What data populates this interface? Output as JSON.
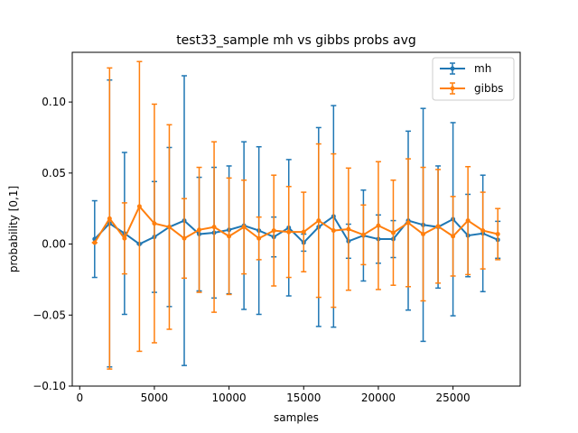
{
  "chart_data": {
    "type": "line",
    "title": "test33_sample mh vs gibbs probs avg",
    "xlabel": "samples",
    "ylabel": "probability [0,1]",
    "xlim": [
      -500,
      29500
    ],
    "ylim": [
      -0.1,
      0.135
    ],
    "xticks": [
      0,
      5000,
      10000,
      15000,
      20000,
      25000
    ],
    "yticks": [
      -0.1,
      -0.05,
      0.0,
      0.05,
      0.1
    ],
    "ytick_labels": [
      "−0.10",
      "−0.05",
      "0.00",
      "0.05",
      "0.10"
    ],
    "legend": "top-right",
    "grid": false,
    "series": [
      {
        "name": "mh",
        "color": "#1f77b4",
        "x": [
          1000,
          2000,
          3000,
          4000,
          5000,
          6000,
          7000,
          8000,
          9000,
          10000,
          11000,
          12000,
          13000,
          14000,
          15000,
          16000,
          17000,
          18000,
          19000,
          20000,
          21000,
          22000,
          23000,
          24000,
          25000,
          26000,
          27000,
          28000
        ],
        "y": [
          0.0035,
          0.0145,
          0.0075,
          0.0,
          0.005,
          0.012,
          0.0165,
          0.007,
          0.008,
          0.01,
          0.013,
          0.0095,
          0.005,
          0.0115,
          0.001,
          0.012,
          0.0195,
          0.002,
          0.006,
          0.0035,
          0.0035,
          0.0165,
          0.0135,
          0.012,
          0.0175,
          0.006,
          0.0075,
          0.003
        ],
        "err": [
          0.027,
          0.101,
          0.057,
          0.0,
          0.039,
          0.056,
          0.102,
          0.04,
          0.046,
          0.045,
          0.059,
          0.059,
          0.014,
          0.048,
          0.006,
          0.07,
          0.078,
          0.012,
          0.032,
          0.017,
          0.013,
          0.063,
          0.082,
          0.043,
          0.068,
          0.029,
          0.041,
          0.013
        ]
      },
      {
        "name": "gibbs",
        "color": "#ff7f0e",
        "x": [
          1000,
          2000,
          3000,
          4000,
          5000,
          6000,
          7000,
          8000,
          9000,
          10000,
          11000,
          12000,
          13000,
          14000,
          15000,
          16000,
          17000,
          18000,
          19000,
          20000,
          21000,
          22000,
          23000,
          24000,
          25000,
          26000,
          27000,
          28000
        ],
        "y": [
          0.001,
          0.018,
          0.004,
          0.0265,
          0.0145,
          0.012,
          0.004,
          0.01,
          0.012,
          0.0055,
          0.012,
          0.004,
          0.0095,
          0.0085,
          0.0085,
          0.0165,
          0.0095,
          0.0105,
          0.0065,
          0.013,
          0.008,
          0.015,
          0.007,
          0.0125,
          0.0055,
          0.0165,
          0.0095,
          0.007
        ],
        "err": [
          0.0,
          0.106,
          0.025,
          0.102,
          0.084,
          0.072,
          0.028,
          0.044,
          0.06,
          0.041,
          0.033,
          0.015,
          0.039,
          0.032,
          0.028,
          0.054,
          0.054,
          0.043,
          0.021,
          0.045,
          0.037,
          0.045,
          0.047,
          0.04,
          0.028,
          0.038,
          0.027,
          0.018
        ]
      }
    ]
  }
}
